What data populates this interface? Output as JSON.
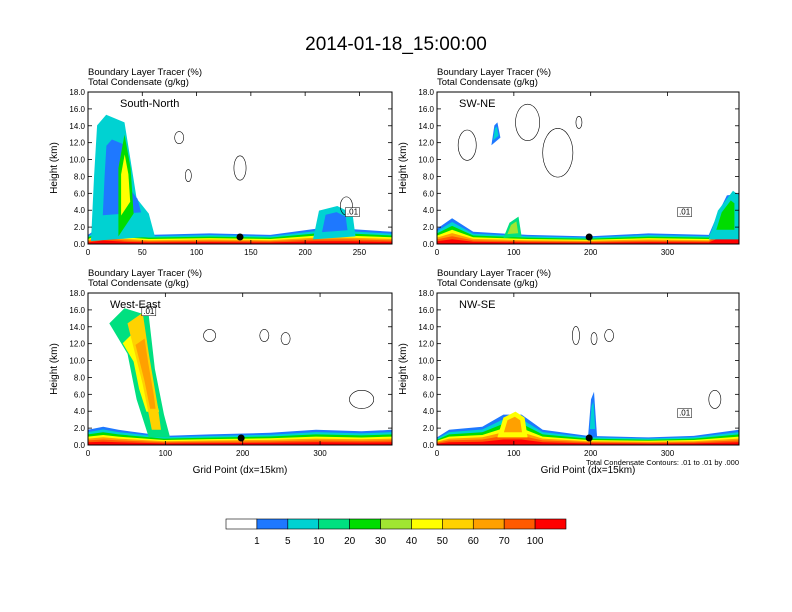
{
  "title": "2014-01-18_15:00:00",
  "subtitle_tracer": "Boundary Layer Tracer",
  "subtitle_tracer_units": "(%)",
  "subtitle_condensate": "Total Condensate",
  "subtitle_condensate_units": "(g/kg)",
  "y_label": "Height (km)",
  "x_label": "Grid Point (dx=15km)",
  "contour_note": "Total Condensate Contours: .01 to .01 by .000",
  "colors": [
    "#ffffff",
    "#1e78ff",
    "#00d2d2",
    "#00e080",
    "#00dc00",
    "#a0e632",
    "#ffff00",
    "#ffd200",
    "#ffa000",
    "#ff5a00",
    "#ff0000"
  ],
  "chart_data": [
    {
      "type": "heatmap",
      "panel": "South-North",
      "y_ticks": [
        "0.0",
        "2.0",
        "4.0",
        "6.0",
        "8.0",
        "10.0",
        "12.0",
        "14.0",
        "16.0",
        "18.0"
      ],
      "ylim": [
        0,
        18
      ],
      "xlim": [
        0,
        280
      ],
      "x_ticks": [
        "0",
        "50",
        "100",
        "150",
        "200",
        "250"
      ],
      "x_tick_values": [
        0,
        50,
        100,
        150,
        200,
        250
      ],
      "marker_x": 140,
      "contour_label": ".01"
    },
    {
      "type": "heatmap",
      "panel": "SW-NE",
      "y_ticks": [
        "0.0",
        "2.0",
        "4.0",
        "6.0",
        "8.0",
        "10.0",
        "12.0",
        "14.0",
        "16.0",
        "18.0"
      ],
      "ylim": [
        0,
        18
      ],
      "xlim": [
        0,
        393
      ],
      "x_ticks": [
        "0",
        "100",
        "200",
        "300"
      ],
      "x_tick_values": [
        0,
        100,
        200,
        300
      ],
      "marker_x": 198,
      "contour_label": ".01"
    },
    {
      "type": "heatmap",
      "panel": "West-East",
      "y_ticks": [
        "0.0",
        "2.0",
        "4.0",
        "6.0",
        "8.0",
        "10.0",
        "12.0",
        "14.0",
        "16.0",
        "18.0"
      ],
      "ylim": [
        0,
        18
      ],
      "xlim": [
        0,
        393
      ],
      "x_ticks": [
        "0",
        "100",
        "200",
        "300"
      ],
      "x_tick_values": [
        0,
        100,
        200,
        300
      ],
      "marker_x": 198,
      "contour_label": ".01"
    },
    {
      "type": "heatmap",
      "panel": "NW-SE",
      "y_ticks": [
        "0.0",
        "2.0",
        "4.0",
        "6.0",
        "8.0",
        "10.0",
        "12.0",
        "14.0",
        "16.0",
        "18.0"
      ],
      "ylim": [
        0,
        18
      ],
      "xlim": [
        0,
        393
      ],
      "x_ticks": [
        "0",
        "100",
        "200",
        "300"
      ],
      "x_tick_values": [
        0,
        100,
        200,
        300
      ],
      "marker_x": 198,
      "contour_label": ".01"
    }
  ],
  "colorbar": {
    "labels": [
      "1",
      "5",
      "10",
      "20",
      "30",
      "40",
      "50",
      "60",
      "70",
      "100"
    ]
  }
}
